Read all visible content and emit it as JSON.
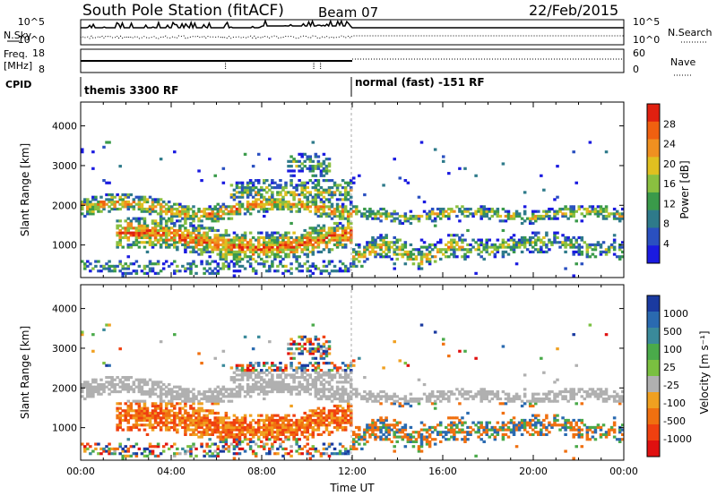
{
  "header": {
    "station": "South Pole Station (fitACF)",
    "beam": "Beam 07",
    "date": "22/Feb/2015"
  },
  "top_panels": {
    "nsky_label": "N.Sky",
    "nsky_ticks": [
      "10^5",
      "10^0"
    ],
    "nsearch_label": "N.Search",
    "nsearch_ticks": [
      "10^5",
      "10^0"
    ],
    "freq_label_1": "Freq.",
    "freq_label_2": "[MHz]",
    "freq_ticks": [
      "18",
      "8"
    ],
    "nave_label": "Nave",
    "nave_ticks": [
      "60",
      "0"
    ],
    "cpid_label": "CPID",
    "cpid_1": "themis 3300 RF",
    "cpid_2": "normal (fast) -151 RF"
  },
  "chart_data": [
    {
      "type": "heatmap",
      "name": "power-panel",
      "ylabel": "Slant Range [km]",
      "xlabel": "",
      "yticks": [
        "1000",
        "2000",
        "3000",
        "4000"
      ],
      "ylim": [
        180,
        4600
      ],
      "xlim_hours": [
        0,
        24
      ],
      "colorbar_label": "Power [dB]",
      "colorbar_ticks": [
        "4",
        "8",
        "12",
        "16",
        "20",
        "24",
        "28"
      ],
      "colors": [
        "#1a1ae0",
        "#2a50c0",
        "#2e7a8a",
        "#3a9a4a",
        "#8ac040",
        "#e0c020",
        "#f09020",
        "#f06010",
        "#e02010"
      ]
    },
    {
      "type": "heatmap",
      "name": "velocity-panel",
      "ylabel": "Slant Range [km]",
      "xlabel": "Time UT",
      "yticks": [
        "1000",
        "2000",
        "3000",
        "4000"
      ],
      "ylim": [
        180,
        4600
      ],
      "xlim_hours": [
        0,
        24
      ],
      "xticks": [
        "00:00",
        "04:00",
        "08:00",
        "12:00",
        "16:00",
        "20:00",
        "00:00"
      ],
      "colorbar_label": "Velocity [m s⁻¹]",
      "colorbar_ticks": [
        "1000",
        "500",
        "100",
        "25",
        "-25",
        "-100",
        "-500",
        "-1000"
      ],
      "colors": [
        "#1a3aa0",
        "#2a6ab0",
        "#3a8a9a",
        "#4aaa4a",
        "#7ac040",
        "#b0b0b0",
        "#f0a020",
        "#f07010",
        "#f04010",
        "#e01010"
      ]
    }
  ]
}
